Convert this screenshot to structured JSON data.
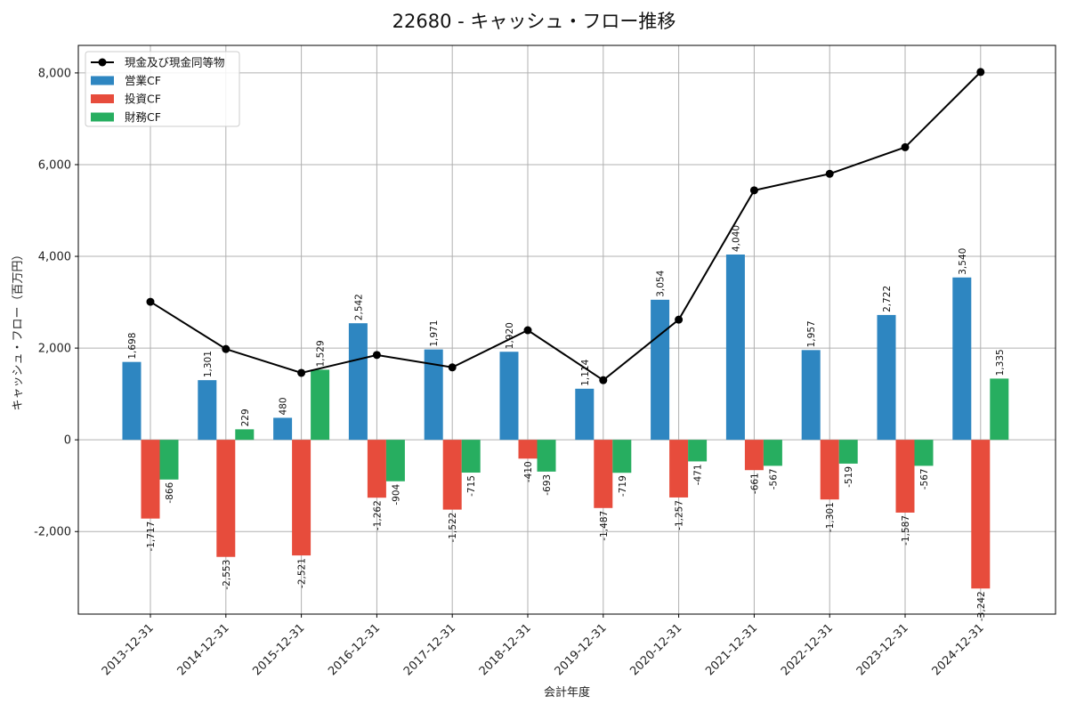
{
  "chart_data": {
    "type": "bar",
    "title": "22680 - キャッシュ・フロー推移",
    "xlabel": "会計年度",
    "ylabel": "キャッシュ・フロー（百万円）",
    "ylim": [
      -3800,
      8600
    ],
    "yticks": [
      -2000,
      0,
      2000,
      4000,
      6000,
      8000
    ],
    "ytick_labels": [
      "-2,000",
      "0",
      "2,000",
      "4,000",
      "6,000",
      "8,000"
    ],
    "grid": true,
    "legend_position": "top-left",
    "categories": [
      "2013-12-31",
      "2014-12-31",
      "2015-12-31",
      "2016-12-31",
      "2017-12-31",
      "2018-12-31",
      "2019-12-31",
      "2020-12-31",
      "2021-12-31",
      "2022-12-31",
      "2023-12-31",
      "2024-12-31"
    ],
    "series": [
      {
        "name": "営業CF",
        "kind": "bar",
        "color": "#2e86c1",
        "values": [
          1698,
          1301,
          480,
          2542,
          1971,
          1920,
          1114,
          3054,
          4040,
          1957,
          2722,
          3540
        ],
        "labels": [
          "1,698",
          "1,301",
          "480",
          "2,542",
          "1,971",
          "1,920",
          "1,114",
          "3,054",
          "4,040",
          "1,957",
          "2,722",
          "3,540"
        ]
      },
      {
        "name": "投資CF",
        "kind": "bar",
        "color": "#e74c3c",
        "values": [
          -1717,
          -2553,
          -2521,
          -1262,
          -1522,
          -410,
          -1487,
          -1257,
          -661,
          -1301,
          -1587,
          -3242
        ],
        "labels": [
          "-1,717",
          "-2,553",
          "-2,521",
          "-1,262",
          "-1,522",
          "-410",
          "-1,487",
          "-1,257",
          "-661",
          "-1,301",
          "-1,587",
          "-3,242"
        ]
      },
      {
        "name": "財務CF",
        "kind": "bar",
        "color": "#27ae60",
        "values": [
          -866,
          229,
          1529,
          -904,
          -715,
          -693,
          -719,
          -471,
          -567,
          -519,
          -567,
          1335
        ],
        "labels": [
          "-866",
          "229",
          "1,529",
          "-904",
          "-715",
          "-693",
          "-719",
          "-471",
          "-567",
          "-519",
          "-567",
          "1,335"
        ]
      },
      {
        "name": "現金及び現金同等物",
        "kind": "line",
        "color": "#000000",
        "values": [
          3010,
          1980,
          1460,
          1850,
          1580,
          2390,
          1300,
          2620,
          5440,
          5800,
          6380,
          8020
        ]
      }
    ]
  }
}
